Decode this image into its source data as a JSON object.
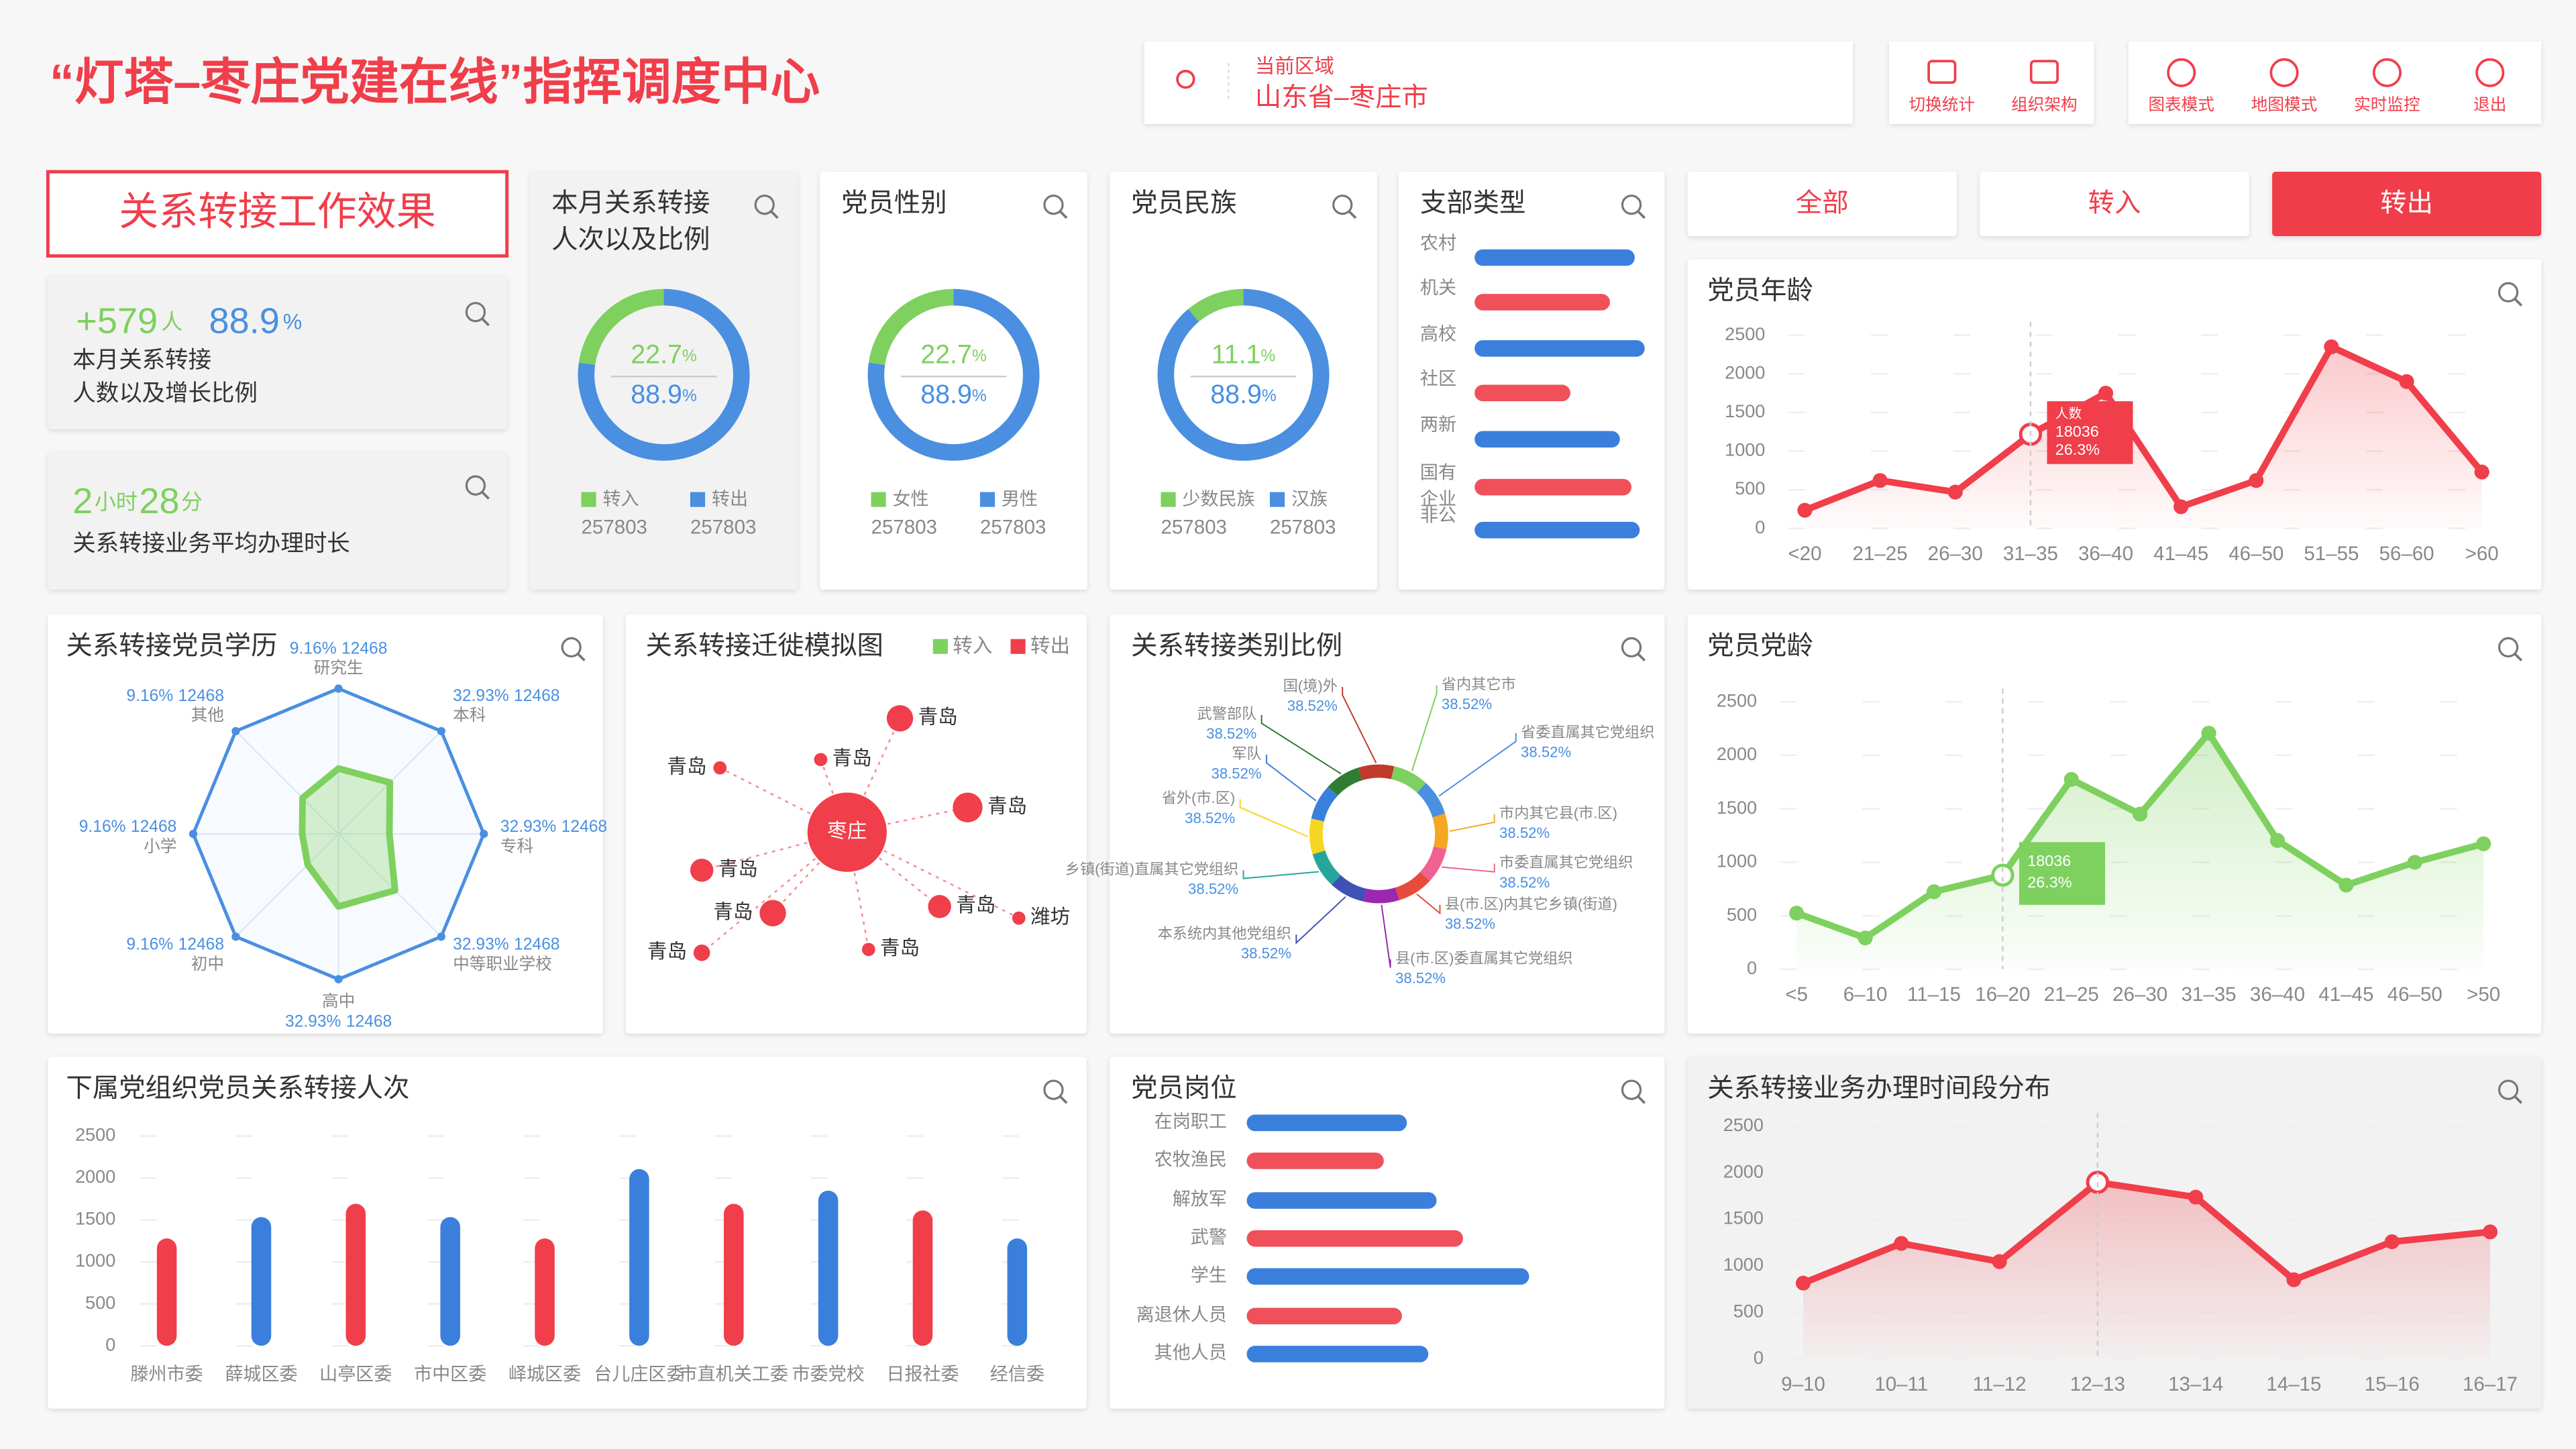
{
  "header": {
    "title": "“灯塔–枣庄党建在线”指挥调度中心",
    "region_label": "当前区域",
    "region": "山东省–枣庄市",
    "tools": [
      "切换统计",
      "组织架构"
    ],
    "modes": [
      "图表模式",
      "地图模式",
      "实时监控",
      "退出"
    ]
  },
  "filters": {
    "options": [
      "全部",
      "转入",
      "转出"
    ],
    "active": 2
  },
  "effect": {
    "title": "关系转接工作效果",
    "transfer": {
      "count": "+579",
      "count_unit": "人",
      "ratio": "88.9",
      "ratio_unit": "%",
      "desc": [
        "本月关系转接",
        "人数以及增长比例"
      ]
    },
    "duration": {
      "hours": "2",
      "hours_unit": "小时",
      "minutes": "28",
      "minutes_unit": "分",
      "desc": "关系转接业务平均办理时长"
    }
  },
  "donuts": [
    {
      "title": [
        "本月关系转接",
        "人次以及比例"
      ],
      "values": [
        22.7,
        88.9
      ],
      "unit": "%",
      "legend": [
        "转入",
        "转出"
      ],
      "counts": [
        257803,
        257803
      ],
      "colors": [
        "#7ed05f",
        "#4a8fe0"
      ]
    },
    {
      "title": [
        "党员性别"
      ],
      "values": [
        22.7,
        88.9
      ],
      "unit": "%",
      "legend": [
        "女性",
        "男性"
      ],
      "counts": [
        257803,
        257803
      ],
      "colors": [
        "#7ed05f",
        "#4a8fe0"
      ]
    },
    {
      "title": [
        "党员民族"
      ],
      "values": [
        11.1,
        88.9
      ],
      "unit": "%",
      "legend": [
        "少数民族",
        "汉族"
      ],
      "counts": [
        257803,
        257803
      ],
      "colors": [
        "#7ed05f",
        "#4a8fe0"
      ]
    }
  ],
  "branch_types": {
    "title": "支部类型",
    "categories": [
      [
        "农村"
      ],
      [
        "机关"
      ],
      [
        "高校"
      ],
      [
        "社区"
      ],
      [
        "两新"
      ],
      [
        "国有",
        "企业"
      ],
      [
        "非公"
      ]
    ],
    "values": [
      97,
      82,
      103,
      58,
      88,
      95,
      100
    ],
    "xlim": [
      0,
      105
    ],
    "colors": [
      "#3a7fdc",
      "#f0505a"
    ]
  },
  "age": {
    "title": "党员年龄",
    "categories": [
      "<20",
      "21–25",
      "26–30",
      "31–35",
      "36–40",
      "41–45",
      "46–50",
      "51–55",
      "56–60",
      ">60"
    ],
    "values": [
      235,
      620,
      470,
      1218,
      1750,
      280,
      620,
      2350,
      1900,
      730
    ],
    "ylim": [
      0,
      2500
    ],
    "yticks": [
      0,
      500,
      1000,
      1500,
      2000,
      2500
    ],
    "color": "#f03e4a",
    "tooltip": {
      "label": "人数",
      "value": 18036,
      "ratio": "26.3%"
    }
  },
  "education": {
    "title": "关系转接党员学历",
    "rlim": [
      0,
      100
    ],
    "color": "#7ed05f",
    "axes": [
      {
        "name": "研究生",
        "share": "9.16%",
        "count": 12468,
        "value": 45
      },
      {
        "name": "本科",
        "share": "32.93%",
        "count": 12468,
        "value": 50
      },
      {
        "name": "专科",
        "share": "32.93%",
        "count": 12468,
        "value": 35
      },
      {
        "name": "中等职业学校",
        "share": "32.93%",
        "count": 12468,
        "value": 55
      },
      {
        "name": "高中",
        "share": "32.93%",
        "count": 12468,
        "value": 50
      },
      {
        "name": "初中",
        "share": "9.16%",
        "count": 12468,
        "value": 30
      },
      {
        "name": "小学",
        "share": "9.16%",
        "count": 12468,
        "value": 25
      },
      {
        "name": "其他",
        "share": "9.16%",
        "count": 12468,
        "value": 35
      }
    ]
  },
  "migration": {
    "title": "关系转接迁徙模拟图",
    "legend": [
      "转入",
      "转出"
    ],
    "legend_colors": [
      "#7ed05f",
      "#f03e4a"
    ],
    "center": "枣庄",
    "nodes": [
      "青岛",
      "青岛",
      "青岛",
      "青岛",
      "青岛",
      "青岛",
      "青岛",
      "潍坊",
      "青岛",
      "青岛"
    ]
  },
  "categories_ratio": {
    "title": "关系转接类别比例",
    "items": [
      {
        "name": "国(境)外",
        "value": 38.52,
        "label": "38.52%"
      },
      {
        "name": "省内其它市",
        "value": 38.52,
        "label": "38.52%"
      },
      {
        "name": "省委直属其它党组织",
        "value": 38.52,
        "label": "38.52%"
      },
      {
        "name": "市内其它县(市.区)",
        "value": 38.52,
        "label": "38.52%"
      },
      {
        "name": "市委直属其它党组织",
        "value": 38.52,
        "label": "38.52%"
      },
      {
        "name": "县(市.区)内其它乡镇(街道)",
        "value": 38.52,
        "label": "38.52%"
      },
      {
        "name": "县(市.区)委直属其它党组织",
        "value": 38.52,
        "label": "38.52%"
      },
      {
        "name": "本系统内其他党组织",
        "value": 38.52,
        "label": "38.52%"
      },
      {
        "name": "乡镇(街道)直属其它党组织",
        "value": 38.52,
        "label": "38.52%"
      },
      {
        "name": "省外(市.区)",
        "value": 38.52,
        "label": "38.52%"
      },
      {
        "name": "军队",
        "value": 38.52,
        "label": "38.52%"
      },
      {
        "name": "武警部队",
        "value": 38.52,
        "label": "38.52%"
      }
    ],
    "colors": [
      "#c0392b",
      "#7ed05f",
      "#4a8fe0",
      "#f5a623",
      "#f06292",
      "#e84b3c",
      "#9c27b0",
      "#3f51b5",
      "#26a69a",
      "#f5d623",
      "#3a7fdc",
      "#2e7d32"
    ]
  },
  "tenure": {
    "title": "党员党龄",
    "categories": [
      "<5",
      "6–10",
      "11–15",
      "16–20",
      "21–25",
      "26–30",
      "31–35",
      "36–40",
      "41–45",
      "46–50",
      ">50"
    ],
    "values": [
      525,
      293,
      725,
      880,
      1775,
      1450,
      2207,
      1204,
      787,
      1000,
      1173
    ],
    "ylim": [
      0,
      2500
    ],
    "yticks": [
      0,
      500,
      1000,
      1500,
      2000,
      2500
    ],
    "color": "#7ed05f",
    "tooltip": {
      "value": 18036,
      "ratio": "26.3%"
    }
  },
  "subordinate": {
    "title": "下属党组织党员关系转接人次",
    "categories": [
      "滕州市委",
      "薛城区委",
      "山亭区委",
      "市中区委",
      "峄城区委",
      "台儿庄区委",
      "市直机关工委",
      "市委党校",
      "日报社委",
      "经信委"
    ],
    "values": [
      1280,
      1535,
      1693,
      1535,
      1280,
      2106,
      1693,
      1850,
      1614,
      1280
    ],
    "ylim": [
      0,
      2500
    ],
    "yticks": [
      0,
      500,
      1000,
      1500,
      2000,
      2500
    ],
    "colors": [
      "#f03e4a",
      "#3a7fdc"
    ]
  },
  "positions": {
    "title": "党员岗位",
    "categories": [
      "在岗职工",
      "农牧渔民",
      "解放军",
      "武警",
      "学生",
      "离退休人员",
      "其他人员"
    ],
    "values": [
      97,
      83,
      115,
      131,
      171,
      94,
      110
    ],
    "xlim": [
      0,
      180
    ],
    "colors": [
      "#3a7fdc",
      "#f0505a"
    ]
  },
  "time_slots": {
    "title": "关系转接业务办理时间段分布",
    "categories": [
      "9–10",
      "10–11",
      "11–12",
      "12–13",
      "13–14",
      "14–15",
      "15–16",
      "16–17"
    ],
    "values": [
      815,
      1241,
      1046,
      1897,
      1738,
      851,
      1259,
      1365
    ],
    "ylim": [
      0,
      2500
    ],
    "yticks": [
      0,
      500,
      1000,
      1500,
      2000,
      2500
    ],
    "color": "#f03e4a"
  }
}
